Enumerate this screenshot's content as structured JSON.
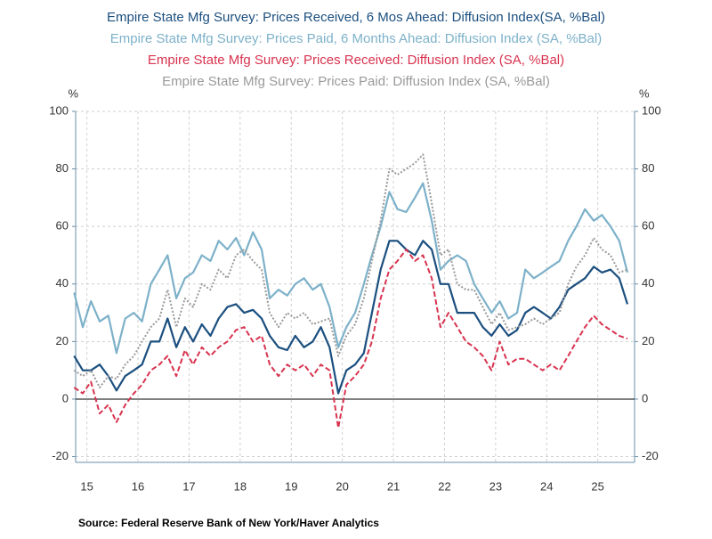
{
  "chart_data": {
    "type": "line",
    "y_unit": "%",
    "source": "Source:  Federal Reserve Bank of New York/Haver Analytics",
    "x": [
      15.25,
      15.42,
      15.58,
      15.75,
      15.92,
      16.08,
      16.25,
      16.42,
      16.58,
      16.75,
      16.92,
      17.08,
      17.25,
      17.42,
      17.58,
      17.75,
      17.92,
      18.08,
      18.25,
      18.42,
      18.58,
      18.75,
      18.92,
      19.08,
      19.25,
      19.42,
      19.58,
      19.75,
      19.92,
      20.08,
      20.25,
      20.42,
      20.58,
      20.75,
      20.92,
      21.08,
      21.25,
      21.42,
      21.58,
      21.75,
      21.92,
      22.08,
      22.25,
      22.42,
      22.58,
      22.75,
      22.92,
      23.08,
      23.25,
      23.42,
      23.58,
      23.75,
      23.92,
      24.08,
      24.25,
      24.42,
      24.58,
      24.75,
      24.92,
      25.08,
      25.25,
      25.42,
      25.58,
      25.75,
      25.92,
      26.08
    ],
    "series": [
      {
        "name": "Empire State Mfg Survey: Prices Received, 6 Mos Ahead: Diffusion Index(SA, %Bal)",
        "color": "#1b4f7f",
        "dash": "solid",
        "values": [
          15,
          10,
          10,
          12,
          8,
          3,
          8,
          10,
          12,
          20,
          20,
          28,
          18,
          25,
          20,
          26,
          22,
          28,
          32,
          33,
          30,
          31,
          28,
          22,
          18,
          17,
          22,
          18,
          20,
          25,
          18,
          2,
          10,
          12,
          16,
          30,
          45,
          55,
          55,
          52,
          50,
          55,
          52,
          40,
          40,
          30,
          30,
          30,
          25,
          22,
          26,
          22,
          24,
          30,
          32,
          30,
          28,
          32,
          38,
          40,
          42,
          46,
          44,
          45,
          42,
          33
        ]
      },
      {
        "name": "Empire State Mfg Survey: Prices Paid, 6 Months Ahead: Diffusion Index (SA, %Bal)",
        "color": "#7db1c9",
        "dash": "solid",
        "values": [
          37,
          25,
          34,
          27,
          29,
          16,
          28,
          30,
          27,
          40,
          45,
          50,
          35,
          42,
          44,
          50,
          48,
          55,
          52,
          56,
          50,
          58,
          52,
          35,
          38,
          36,
          40,
          42,
          38,
          40,
          32,
          18,
          25,
          30,
          40,
          50,
          60,
          72,
          66,
          65,
          70,
          75,
          62,
          45,
          48,
          50,
          48,
          40,
          35,
          30,
          34,
          28,
          30,
          45,
          42,
          44,
          46,
          48,
          55,
          60,
          66,
          62,
          64,
          60,
          55,
          44
        ]
      },
      {
        "name": "Empire State Mfg Survey: Prices Received: Diffusion Index (SA, %Bal)",
        "color": "#d8334f",
        "dash": "dashed",
        "values": [
          4,
          2,
          6,
          -5,
          -2,
          -8,
          -2,
          2,
          5,
          10,
          12,
          15,
          8,
          17,
          12,
          18,
          15,
          18,
          20,
          24,
          25,
          20,
          22,
          12,
          8,
          12,
          10,
          12,
          8,
          12,
          10,
          -10,
          5,
          8,
          12,
          20,
          35,
          45,
          48,
          52,
          48,
          50,
          42,
          25,
          30,
          25,
          20,
          18,
          15,
          10,
          20,
          12,
          14,
          14,
          12,
          10,
          12,
          10,
          15,
          20,
          25,
          29,
          26,
          24,
          22,
          21
        ]
      },
      {
        "name": "Empire State Mfg Survey: Prices Paid: Diffusion Index (SA, %Bal)",
        "color": "#9a9a9a",
        "dash": "dotted",
        "values": [
          10,
          8,
          10,
          4,
          8,
          7,
          12,
          15,
          20,
          25,
          28,
          38,
          25,
          35,
          32,
          40,
          38,
          45,
          42,
          50,
          52,
          48,
          45,
          30,
          25,
          30,
          28,
          30,
          26,
          27,
          28,
          15,
          22,
          26,
          35,
          48,
          62,
          80,
          78,
          80,
          82,
          85,
          68,
          50,
          52,
          40,
          38,
          38,
          32,
          26,
          30,
          24,
          25,
          26,
          28,
          26,
          28,
          30,
          40,
          46,
          50,
          56,
          52,
          50,
          44,
          45
        ]
      }
    ],
    "xlim": [
      15.28,
      26.22
    ],
    "xticks": [
      {
        "value": 15.5,
        "label": "15"
      },
      {
        "value": 16.5,
        "label": "16"
      },
      {
        "value": 17.5,
        "label": "17"
      },
      {
        "value": 18.5,
        "label": "18"
      },
      {
        "value": 19.5,
        "label": "19"
      },
      {
        "value": 20.5,
        "label": "20"
      },
      {
        "value": 21.5,
        "label": "21"
      },
      {
        "value": 22.5,
        "label": "22"
      },
      {
        "value": 23.5,
        "label": "23"
      },
      {
        "value": 24.5,
        "label": "24"
      },
      {
        "value": 25.5,
        "label": "25"
      }
    ],
    "ylim": [
      -22,
      100
    ],
    "yticks": [
      -20,
      0,
      20,
      40,
      60,
      80,
      100
    ],
    "grid": true
  }
}
